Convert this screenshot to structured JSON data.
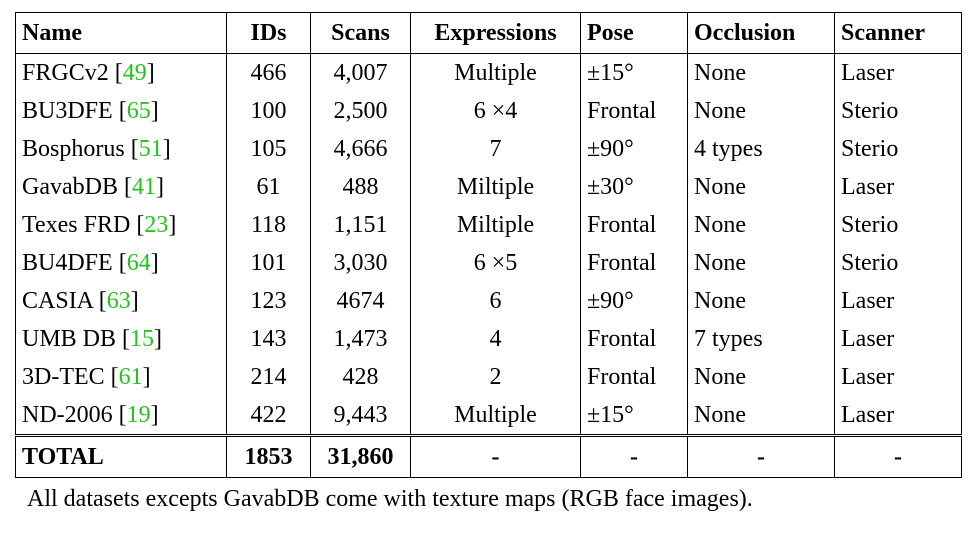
{
  "table": {
    "headers": [
      "Name",
      "IDs",
      "Scans",
      "Expressions",
      "Pose",
      "Occlusion",
      "Scanner"
    ],
    "rows": [
      {
        "name": "FRGCv2",
        "ref": "49",
        "ids": "466",
        "scans": "4,007",
        "expressions": "Multiple",
        "pose": "±15°",
        "occlusion": "None",
        "scanner": "Laser"
      },
      {
        "name": "BU3DFE",
        "ref": "65",
        "ids": "100",
        "scans": "2,500",
        "expressions": "6 ×4",
        "pose": "Frontal",
        "occlusion": "None",
        "scanner": "Sterio"
      },
      {
        "name": "Bosphorus",
        "ref": "51",
        "ids": "105",
        "scans": "4,666",
        "expressions": "7",
        "pose": "±90°",
        "occlusion": "4 types",
        "scanner": "Sterio"
      },
      {
        "name": "GavabDB",
        "ref": "41",
        "ids": "61",
        "scans": "488",
        "expressions": "Miltiple",
        "pose": "±30°",
        "occlusion": "None",
        "scanner": "Laser"
      },
      {
        "name": "Texes FRD",
        "ref": "23",
        "ids": "118",
        "scans": "1,151",
        "expressions": "Miltiple",
        "pose": "Frontal",
        "occlusion": "None",
        "scanner": "Sterio"
      },
      {
        "name": "BU4DFE",
        "ref": "64",
        "ids": "101",
        "scans": "3,030",
        "expressions": "6 ×5",
        "pose": "Frontal",
        "occlusion": "None",
        "scanner": "Sterio"
      },
      {
        "name": "CASIA",
        "ref": "63",
        "ids": "123",
        "scans": "4674",
        "expressions": "6",
        "pose": "±90°",
        "occlusion": "None",
        "scanner": "Laser"
      },
      {
        "name": "UMB DB",
        "ref": "15",
        "ids": "143",
        "scans": "1,473",
        "expressions": "4",
        "pose": "Frontal",
        "occlusion": "7 types",
        "scanner": "Laser"
      },
      {
        "name": "3D-TEC",
        "ref": "61",
        "ids": "214",
        "scans": "428",
        "expressions": "2",
        "pose": "Frontal",
        "occlusion": "None",
        "scanner": "Laser"
      },
      {
        "name": "ND-2006",
        "ref": "19",
        "ids": "422",
        "scans": "9,443",
        "expressions": "Multiple",
        "pose": "±15°",
        "occlusion": "None",
        "scanner": "Laser"
      }
    ],
    "total": {
      "name": "TOTAL",
      "ids": "1853",
      "scans": "31,860",
      "expressions": "-",
      "pose": "-",
      "occlusion": "-",
      "scanner": "-"
    }
  },
  "caption": "All datasets excepts GavabDB come with texture maps (RGB face images).",
  "colors": {
    "citation": "#22c31e",
    "text": "#000000"
  }
}
